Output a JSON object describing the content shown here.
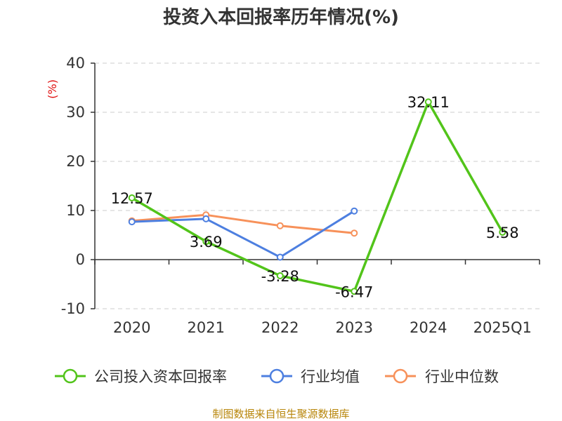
{
  "chart_data": {
    "type": "line",
    "title": "投资入本回报率历年情况(%)",
    "ylabel": "(%)",
    "categories": [
      "2020",
      "2021",
      "2022",
      "2023",
      "2024",
      "2025Q1"
    ],
    "ylim": [
      -10,
      40
    ],
    "yticks": [
      "40",
      "30",
      "20",
      "10",
      "0",
      "-10"
    ],
    "ytick_values": [
      40,
      30,
      20,
      10,
      0,
      -10
    ],
    "grid": true,
    "legend_position": "bottom",
    "series": [
      {
        "name": "公司投入资本回报率",
        "color": "#52c41a",
        "values": [
          12.57,
          3.69,
          -3.28,
          -6.47,
          32.11,
          5.58
        ],
        "labels": [
          "12.57",
          "3.69",
          "-3.28",
          "-6.47",
          "32.11",
          "5.58"
        ]
      },
      {
        "name": "行业均值",
        "color": "#4d7fe0",
        "values": [
          7.7,
          8.3,
          0.5,
          9.9,
          null,
          null
        ]
      },
      {
        "name": "行业中位数",
        "color": "#f7915a",
        "values": [
          7.9,
          9.1,
          6.9,
          5.4,
          null,
          null
        ]
      }
    ]
  },
  "source_note": "制图数据来自恒生聚源数据库"
}
